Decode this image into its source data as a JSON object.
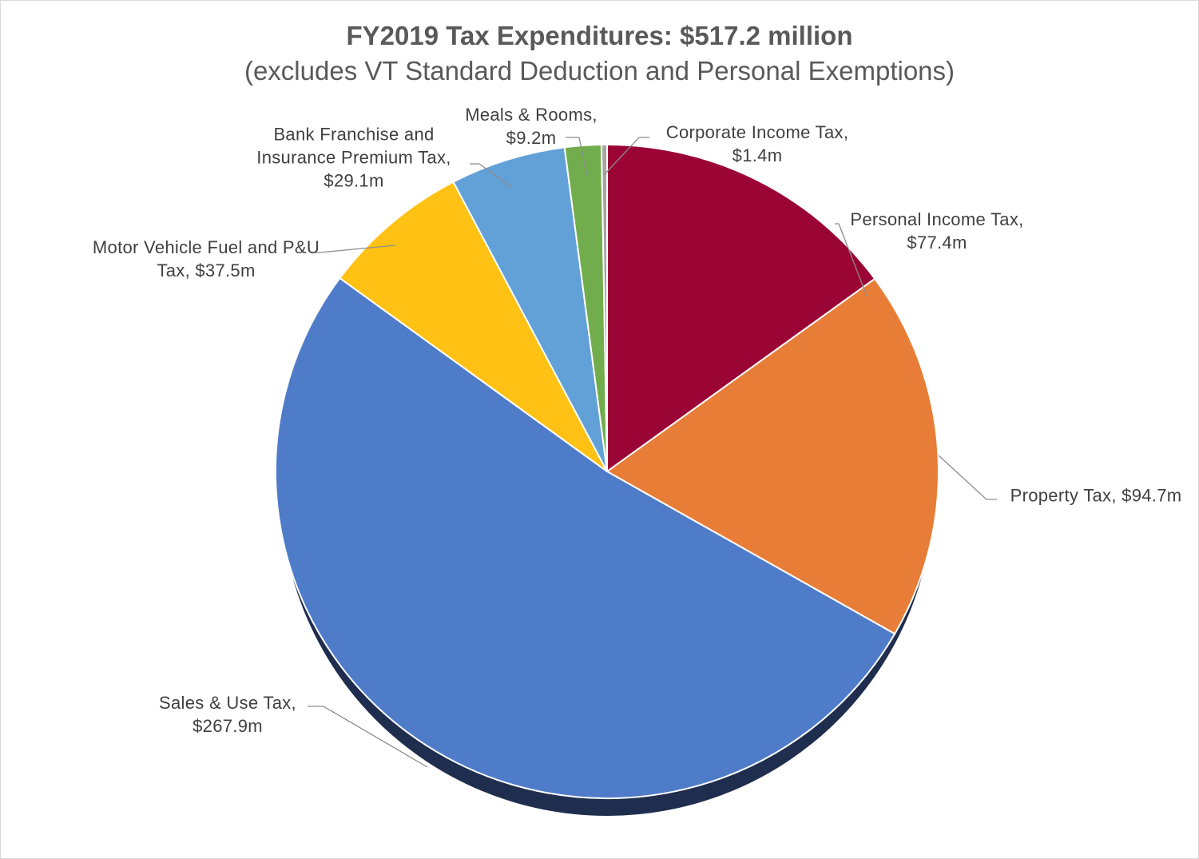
{
  "chart_data": {
    "type": "pie",
    "title": "FY2019 Tax Expenditures: $517.2 million",
    "subtitle": "(excludes VT Standard Deduction and Personal Exemptions)",
    "categories": [
      "Personal Income Tax",
      "Property Tax",
      "Sales & Use Tax",
      "Motor Vehicle Fuel and P&U Tax",
      "Bank Franchise and Insurance Premium Tax",
      "Meals & Rooms",
      "Corporate Income Tax"
    ],
    "values": [
      77.4,
      94.7,
      267.9,
      37.5,
      29.1,
      9.2,
      1.4
    ],
    "value_labels": [
      "$77.4m",
      "$94.7m",
      "$267.9m",
      "$37.5m",
      "$29.1m",
      "$9.2m",
      "$1.4m"
    ],
    "colors": [
      "#9b0535",
      "#e87d37",
      "#4f7cc9",
      "#ffc214",
      "#62a0d8",
      "#72ad4d",
      "#a5a5a5"
    ]
  }
}
